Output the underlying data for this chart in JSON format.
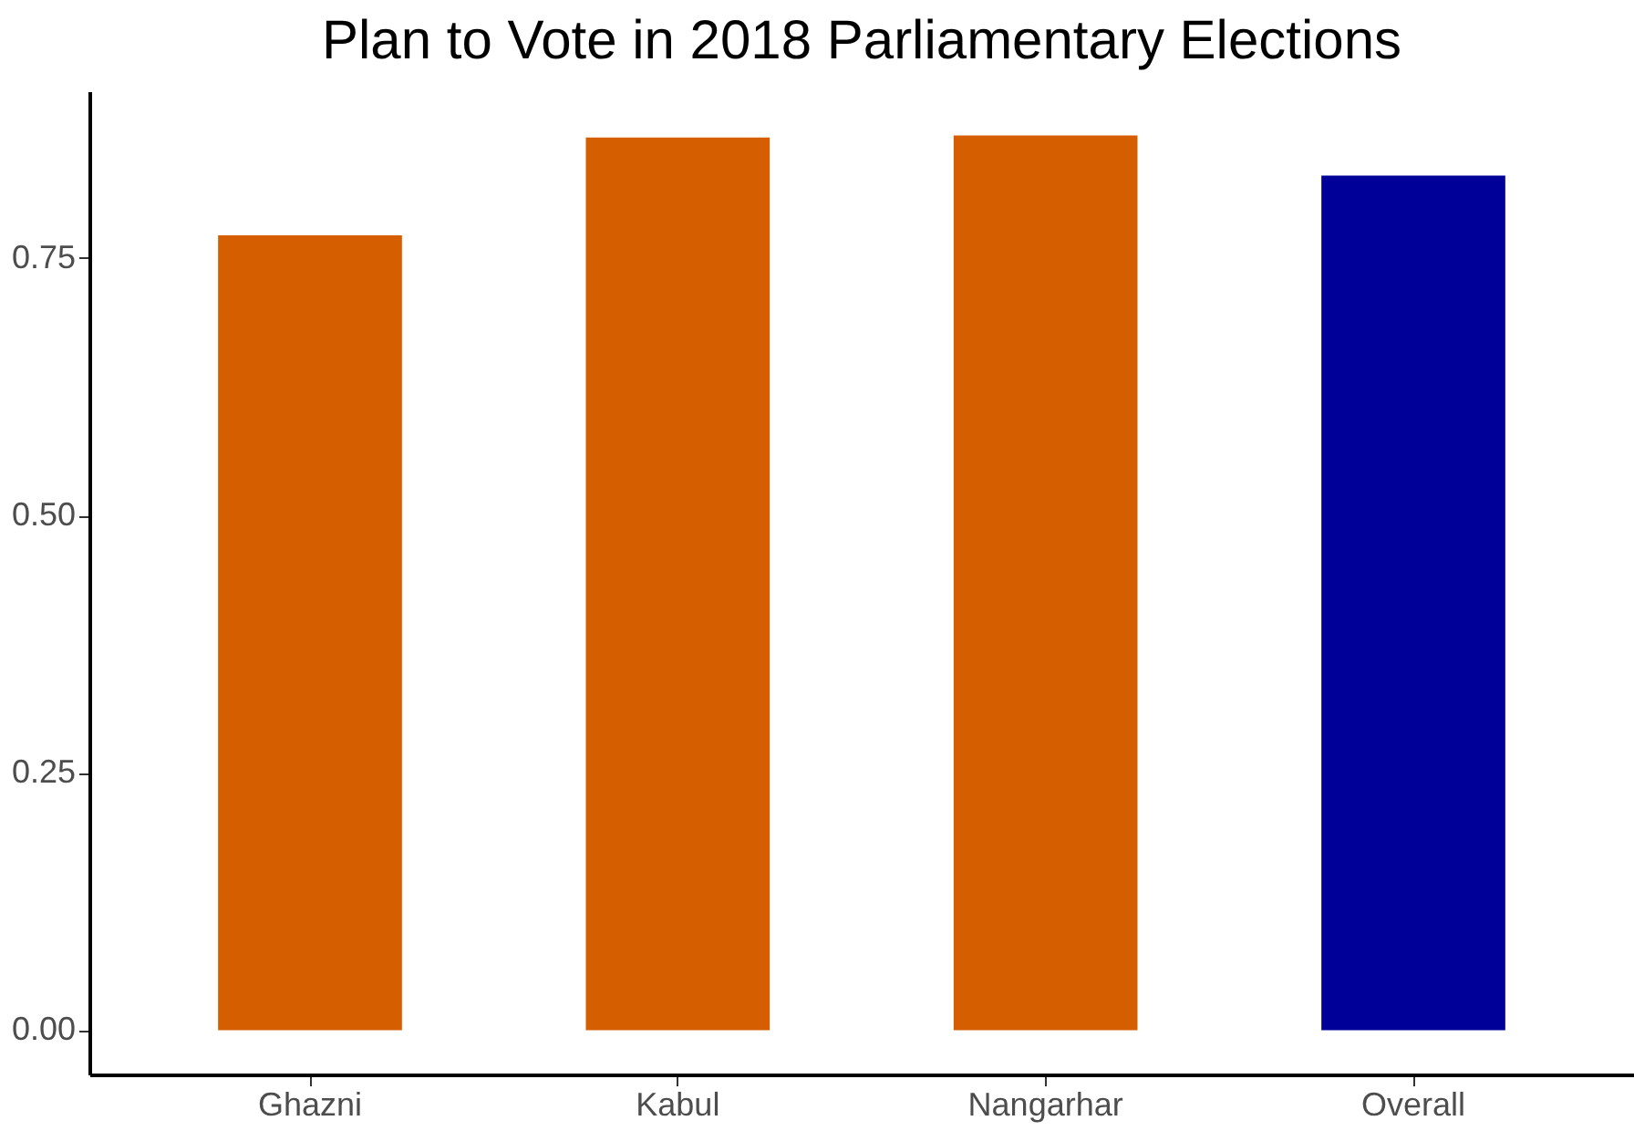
{
  "chart_data": {
    "type": "bar",
    "title": "Plan to Vote in 2018 Parliamentary Elections",
    "categories": [
      "Ghazni",
      "Kabul",
      "Nangarhar",
      "Overall"
    ],
    "values": [
      0.772,
      0.867,
      0.869,
      0.83
    ],
    "colors": [
      "#d55e00",
      "#d55e00",
      "#d55e00",
      "#000099"
    ],
    "ylim": [
      -0.043,
      0.912
    ],
    "yticks": [
      {
        "value": 0,
        "label": "0.00"
      },
      {
        "value": 0.25,
        "label": "0.25"
      },
      {
        "value": 0.5,
        "label": "0.50"
      },
      {
        "value": 0.75,
        "label": "0.75"
      }
    ],
    "grid": false
  }
}
